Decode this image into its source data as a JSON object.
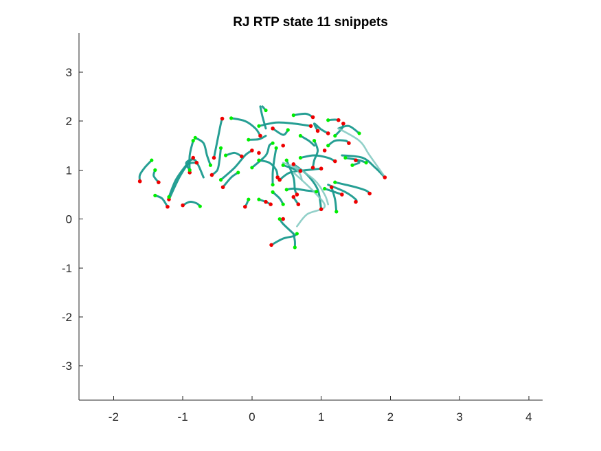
{
  "chart_data": {
    "type": "line",
    "title": "RJ  RTP state 11 snippets",
    "xlabel": "",
    "ylabel": "",
    "xlim": [
      -2.5,
      4.2
    ],
    "ylim": [
      -3.7,
      3.8
    ],
    "xticks": [
      -2,
      -1,
      0,
      1,
      2,
      3,
      4
    ],
    "yticks": [
      3,
      2,
      1,
      0,
      -1,
      -2,
      -3
    ],
    "box": false,
    "grid": false,
    "colors": {
      "line": "#1a9a8e",
      "line_light": "#7fc8c0",
      "start": "#00ee00",
      "end": "#ee0000"
    },
    "series": [
      {
        "points": [
          [
            -1.45,
            1.2
          ],
          [
            -1.55,
            1.05
          ],
          [
            -1.62,
            0.9
          ],
          [
            -1.62,
            0.77
          ]
        ]
      },
      {
        "points": [
          [
            -1.4,
            1.0
          ],
          [
            -1.42,
            0.88
          ],
          [
            -1.35,
            0.75
          ]
        ]
      },
      {
        "points": [
          [
            -1.2,
            0.45
          ],
          [
            -1.1,
            0.8
          ],
          [
            -0.95,
            1.1
          ],
          [
            -0.85,
            1.25
          ]
        ]
      },
      {
        "points": [
          [
            -1.2,
            0.4
          ],
          [
            -1.05,
            0.85
          ],
          [
            -0.92,
            1.12
          ],
          [
            -0.8,
            1.15
          ]
        ]
      },
      {
        "points": [
          [
            -1.4,
            0.48
          ],
          [
            -1.3,
            0.42
          ],
          [
            -1.22,
            0.25
          ]
        ]
      },
      {
        "points": [
          [
            -1.0,
            0.28
          ],
          [
            -0.9,
            0.35
          ],
          [
            -0.8,
            0.32
          ],
          [
            -0.75,
            0.26
          ]
        ]
      },
      {
        "points": [
          [
            -0.9,
            1.0
          ],
          [
            -0.95,
            1.15
          ],
          [
            -0.82,
            1.2
          ],
          [
            -0.7,
            0.85
          ]
        ]
      },
      {
        "points": [
          [
            -0.85,
            1.6
          ],
          [
            -0.9,
            1.3
          ],
          [
            -0.9,
            0.95
          ]
        ]
      },
      {
        "points": [
          [
            -0.82,
            1.66
          ],
          [
            -0.7,
            1.55
          ],
          [
            -0.65,
            1.3
          ],
          [
            -0.6,
            1.1
          ]
        ]
      },
      {
        "points": [
          [
            -0.55,
            1.25
          ],
          [
            -0.5,
            1.6
          ],
          [
            -0.45,
            1.95
          ],
          [
            -0.43,
            2.05
          ]
        ]
      },
      {
        "points": [
          [
            -0.45,
            1.45
          ],
          [
            -0.47,
            1.2
          ],
          [
            -0.5,
            1.0
          ],
          [
            -0.58,
            0.9
          ]
        ]
      },
      {
        "points": [
          [
            -0.45,
            0.8
          ],
          [
            -0.25,
            1.05
          ],
          [
            -0.1,
            1.3
          ],
          [
            0.0,
            1.4
          ]
        ]
      },
      {
        "points": [
          [
            -0.42,
            0.65
          ],
          [
            -0.3,
            0.85
          ],
          [
            -0.2,
            0.95
          ]
        ]
      },
      {
        "points": [
          [
            -0.3,
            2.06
          ],
          [
            -0.1,
            2.0
          ],
          [
            0.05,
            1.85
          ],
          [
            0.12,
            1.7
          ]
        ]
      },
      {
        "points": [
          [
            -0.38,
            1.3
          ],
          [
            -0.25,
            1.35
          ],
          [
            -0.15,
            1.28
          ]
        ]
      },
      {
        "points": [
          [
            -0.05,
            1.62
          ],
          [
            0.1,
            1.63
          ],
          [
            0.2,
            1.7
          ]
        ]
      },
      {
        "points": [
          [
            0.1,
            1.9
          ],
          [
            0.35,
            1.97
          ],
          [
            0.6,
            1.95
          ],
          [
            0.85,
            1.9
          ]
        ]
      },
      {
        "points": [
          [
            0.12,
            2.3
          ],
          [
            0.15,
            2.1
          ],
          [
            0.2,
            1.85
          ]
        ]
      },
      {
        "points": [
          [
            0.15,
            2.3
          ],
          [
            0.2,
            2.22
          ]
        ]
      },
      {
        "points": [
          [
            0.3,
            1.85
          ],
          [
            0.45,
            1.72
          ],
          [
            0.52,
            1.82
          ]
        ]
      },
      {
        "points": [
          [
            0.0,
            1.05
          ],
          [
            0.2,
            1.3
          ],
          [
            0.25,
            1.5
          ],
          [
            0.3,
            1.55
          ]
        ]
      },
      {
        "points": [
          [
            0.1,
            1.2
          ],
          [
            0.25,
            1.15
          ],
          [
            0.35,
            1.0
          ],
          [
            0.37,
            0.85
          ]
        ]
      },
      {
        "points": [
          [
            0.35,
            1.45
          ],
          [
            0.32,
            1.2
          ],
          [
            0.3,
            0.95
          ],
          [
            0.3,
            0.7
          ]
        ]
      },
      {
        "points": [
          [
            0.4,
            0.8
          ],
          [
            0.55,
            0.95
          ],
          [
            0.8,
            1.0
          ],
          [
            1.0,
            1.03
          ]
        ]
      },
      {
        "points": [
          [
            0.45,
            1.1
          ],
          [
            0.55,
            1.05
          ],
          [
            0.7,
            0.98
          ]
        ]
      },
      {
        "points": [
          [
            0.5,
            1.2
          ],
          [
            0.6,
            0.85
          ],
          [
            0.62,
            0.6
          ],
          [
            0.65,
            0.5
          ]
        ]
      },
      {
        "points": [
          [
            0.6,
            1.12
          ],
          [
            0.8,
            0.9
          ],
          [
            0.95,
            0.6
          ],
          [
            1.0,
            0.2
          ]
        ]
      },
      {
        "points": [
          [
            0.6,
            2.12
          ],
          [
            0.78,
            2.15
          ],
          [
            0.88,
            2.08
          ]
        ]
      },
      {
        "points": [
          [
            0.95,
            1.8
          ],
          [
            0.9,
            1.95
          ],
          [
            1.0,
            1.83
          ],
          [
            1.1,
            1.75
          ]
        ]
      },
      {
        "points": [
          [
            0.7,
            1.7
          ],
          [
            0.82,
            1.6
          ],
          [
            0.9,
            1.5
          ]
        ]
      },
      {
        "points": [
          [
            0.9,
            1.6
          ],
          [
            0.95,
            1.4
          ],
          [
            0.9,
            1.2
          ],
          [
            0.88,
            1.05
          ]
        ]
      },
      {
        "points": [
          [
            0.7,
            1.25
          ],
          [
            0.9,
            1.3
          ],
          [
            1.1,
            1.25
          ],
          [
            1.2,
            1.18
          ]
        ]
      },
      {
        "points": [
          [
            1.1,
            1.5
          ],
          [
            1.2,
            1.6
          ],
          [
            1.35,
            1.6
          ],
          [
            1.4,
            1.55
          ]
        ]
      },
      {
        "points": [
          [
            1.1,
            2.02
          ],
          [
            1.2,
            2.03
          ],
          [
            1.25,
            2.02
          ]
        ]
      },
      {
        "points": [
          [
            1.25,
            1.85
          ],
          [
            1.4,
            1.9
          ],
          [
            1.55,
            1.75
          ]
        ]
      },
      {
        "points": [
          [
            1.2,
            1.7
          ],
          [
            1.3,
            1.85
          ],
          [
            1.32,
            1.95
          ]
        ]
      },
      {
        "points": [
          [
            1.35,
            1.25
          ],
          [
            1.55,
            1.2
          ],
          [
            1.65,
            1.15
          ]
        ]
      },
      {
        "points": [
          [
            1.3,
            1.3
          ],
          [
            1.6,
            1.25
          ],
          [
            1.78,
            1.05
          ],
          [
            1.92,
            0.85
          ]
        ]
      },
      {
        "points": [
          [
            1.45,
            1.1
          ],
          [
            1.55,
            1.15
          ],
          [
            1.5,
            1.2
          ]
        ]
      },
      {
        "points": [
          [
            1.2,
            0.75
          ],
          [
            1.5,
            0.65
          ],
          [
            1.65,
            0.58
          ],
          [
            1.7,
            0.52
          ]
        ]
      },
      {
        "points": [
          [
            1.1,
            0.7
          ],
          [
            1.35,
            0.55
          ],
          [
            1.5,
            0.4
          ],
          [
            1.5,
            0.35
          ]
        ]
      },
      {
        "points": [
          [
            1.05,
            0.62
          ],
          [
            1.2,
            0.55
          ],
          [
            1.3,
            0.5
          ]
        ]
      },
      {
        "points": [
          [
            1.15,
            0.65
          ],
          [
            1.2,
            0.4
          ],
          [
            1.22,
            0.15
          ]
        ]
      },
      {
        "points": [
          [
            0.5,
            0.6
          ],
          [
            0.6,
            0.62
          ],
          [
            0.8,
            0.58
          ],
          [
            0.93,
            0.56
          ]
        ]
      },
      {
        "points": [
          [
            0.3,
            0.55
          ],
          [
            0.4,
            0.42
          ],
          [
            0.45,
            0.3
          ]
        ]
      },
      {
        "points": [
          [
            -0.05,
            0.4
          ],
          [
            -0.08,
            0.3
          ],
          [
            -0.1,
            0.25
          ]
        ]
      },
      {
        "points": [
          [
            0.1,
            0.4
          ],
          [
            0.2,
            0.35
          ],
          [
            0.27,
            0.3
          ]
        ]
      },
      {
        "points": [
          [
            0.6,
            0.45
          ],
          [
            0.63,
            0.38
          ],
          [
            0.67,
            0.3
          ]
        ]
      },
      {
        "points": [
          [
            0.4,
            0.0
          ],
          [
            0.45,
            -0.1
          ],
          [
            0.6,
            -0.3
          ]
        ]
      },
      {
        "points": [
          [
            0.28,
            -0.53
          ],
          [
            0.45,
            -0.4
          ],
          [
            0.6,
            -0.35
          ],
          [
            0.65,
            -0.3
          ]
        ]
      },
      {
        "points": [
          [
            0.6,
            -0.3
          ],
          [
            0.62,
            -0.45
          ],
          [
            0.62,
            -0.58
          ]
        ]
      },
      {
        "points": [
          [
            0.45,
            1.15
          ],
          [
            0.62,
            1.05
          ],
          [
            0.7,
            0.9
          ],
          [
            0.72,
            0.8
          ]
        ],
        "style": "light"
      },
      {
        "points": [
          [
            0.6,
            1.1
          ],
          [
            0.9,
            0.8
          ],
          [
            1.05,
            0.5
          ],
          [
            1.1,
            0.3
          ]
        ],
        "style": "light"
      },
      {
        "points": [
          [
            0.6,
            0.95
          ],
          [
            0.9,
            0.55
          ],
          [
            1.05,
            0.25
          ],
          [
            0.8,
            0.1
          ],
          [
            0.65,
            -0.15
          ]
        ],
        "style": "light"
      },
      {
        "points": [
          [
            1.25,
            1.85
          ],
          [
            1.55,
            1.6
          ],
          [
            1.7,
            1.3
          ],
          [
            1.9,
            0.9
          ]
        ],
        "style": "light"
      }
    ],
    "start_points": [
      [
        -1.45,
        1.2
      ],
      [
        -1.4,
        1.0
      ],
      [
        -1.2,
        0.45
      ],
      [
        -1.4,
        0.48
      ],
      [
        -0.75,
        0.26
      ],
      [
        -0.9,
        1.0
      ],
      [
        -0.85,
        1.6
      ],
      [
        -0.82,
        1.66
      ],
      [
        -0.45,
        1.45
      ],
      [
        -0.45,
        0.8
      ],
      [
        -0.3,
        2.06
      ],
      [
        -0.05,
        1.62
      ],
      [
        0.1,
        1.9
      ],
      [
        0.2,
        2.22
      ],
      [
        0.52,
        1.82
      ],
      [
        0.0,
        1.05
      ],
      [
        0.1,
        1.2
      ],
      [
        0.35,
        1.45
      ],
      [
        0.45,
        1.1
      ],
      [
        0.6,
        2.12
      ],
      [
        0.7,
        1.7
      ],
      [
        0.7,
        1.25
      ],
      [
        1.1,
        2.02
      ],
      [
        1.2,
        1.7
      ],
      [
        1.35,
        1.25
      ],
      [
        1.45,
        1.1
      ],
      [
        1.2,
        0.75
      ],
      [
        1.05,
        0.62
      ],
      [
        1.22,
        0.15
      ],
      [
        0.5,
        0.6
      ],
      [
        0.3,
        0.55
      ],
      [
        -0.05,
        0.4
      ],
      [
        0.1,
        0.4
      ],
      [
        0.4,
        0.0
      ],
      [
        0.62,
        -0.58
      ],
      [
        0.65,
        -0.3
      ],
      [
        -0.6,
        1.1
      ],
      [
        -0.38,
        1.3
      ],
      [
        0.3,
        1.55
      ],
      [
        0.5,
        1.2
      ],
      [
        0.9,
        1.6
      ],
      [
        1.55,
        1.75
      ],
      [
        0.93,
        0.56
      ],
      [
        0.45,
        0.3
      ],
      [
        0.3,
        0.7
      ],
      [
        -0.2,
        0.95
      ],
      [
        1.1,
        1.5
      ],
      [
        1.65,
        1.15
      ]
    ],
    "end_points": [
      [
        -1.62,
        0.77
      ],
      [
        -1.35,
        0.75
      ],
      [
        -1.22,
        0.25
      ],
      [
        -1.2,
        0.4
      ],
      [
        -1.0,
        0.28
      ],
      [
        -0.85,
        1.25
      ],
      [
        -0.8,
        1.15
      ],
      [
        -0.9,
        0.95
      ],
      [
        -0.55,
        1.25
      ],
      [
        -0.43,
        2.05
      ],
      [
        -0.58,
        0.9
      ],
      [
        -0.42,
        0.65
      ],
      [
        0.0,
        1.4
      ],
      [
        -0.15,
        1.28
      ],
      [
        0.12,
        1.7
      ],
      [
        0.3,
        1.85
      ],
      [
        0.85,
        1.9
      ],
      [
        0.37,
        0.85
      ],
      [
        0.4,
        0.8
      ],
      [
        1.0,
        1.03
      ],
      [
        0.7,
        0.98
      ],
      [
        0.65,
        0.5
      ],
      [
        1.0,
        0.2
      ],
      [
        0.88,
        2.08
      ],
      [
        1.1,
        1.75
      ],
      [
        0.88,
        1.05
      ],
      [
        1.2,
        1.18
      ],
      [
        1.4,
        1.55
      ],
      [
        1.25,
        2.02
      ],
      [
        1.32,
        1.95
      ],
      [
        1.92,
        0.85
      ],
      [
        1.7,
        0.52
      ],
      [
        1.5,
        0.35
      ],
      [
        1.3,
        0.5
      ],
      [
        0.6,
        0.45
      ],
      [
        0.45,
        0.0
      ],
      [
        0.27,
        0.3
      ],
      [
        -0.1,
        0.25
      ],
      [
        0.28,
        -0.53
      ],
      [
        0.95,
        1.8
      ],
      [
        0.6,
        1.12
      ],
      [
        1.15,
        0.65
      ],
      [
        1.5,
        1.2
      ],
      [
        0.67,
        0.3
      ],
      [
        0.2,
        0.35
      ],
      [
        0.1,
        1.35
      ],
      [
        0.45,
        1.5
      ],
      [
        1.05,
        1.4
      ]
    ]
  }
}
